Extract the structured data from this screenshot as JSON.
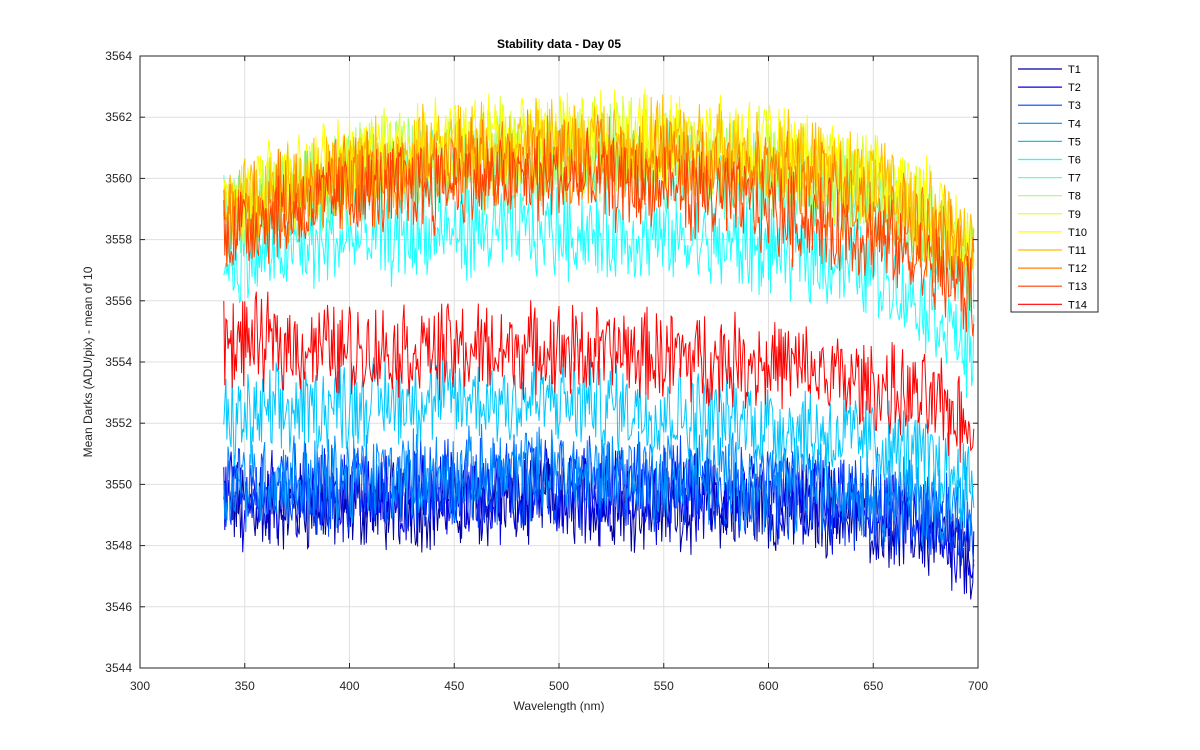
{
  "chart_data": {
    "type": "line",
    "title": "Stability data - Day 05",
    "xlabel": "Wavelength (nm)",
    "ylabel": "Mean Darks (ADU/pix) - mean of 10",
    "xlim": [
      300,
      700
    ],
    "ylim": [
      3544,
      3564
    ],
    "xticks": [
      300,
      350,
      400,
      450,
      500,
      550,
      600,
      650,
      700
    ],
    "yticks": [
      3544,
      3546,
      3548,
      3550,
      3552,
      3554,
      3556,
      3558,
      3560,
      3562,
      3564
    ],
    "x_range": [
      340,
      698
    ],
    "grid": true,
    "legend_position": "outside-top-right",
    "noise_amplitude": 1.6,
    "series": [
      {
        "name": "T1",
        "color": "#00009c",
        "x": [
          340,
          400,
          450,
          500,
          550,
          600,
          650,
          680,
          698
        ],
        "y": [
          3549.3,
          3549.3,
          3549.4,
          3549.5,
          3549.4,
          3549.3,
          3549.0,
          3548.3,
          3547.6
        ]
      },
      {
        "name": "T2",
        "color": "#0000e6",
        "x": [
          340,
          400,
          450,
          500,
          550,
          600,
          650,
          680,
          698
        ],
        "y": [
          3549.5,
          3549.6,
          3549.6,
          3549.7,
          3549.6,
          3549.4,
          3549.0,
          3548.4,
          3547.8
        ]
      },
      {
        "name": "T3",
        "color": "#0044ff",
        "x": [
          340,
          400,
          450,
          500,
          550,
          600,
          650,
          680,
          698
        ],
        "y": [
          3549.8,
          3549.9,
          3550.0,
          3550.1,
          3550.0,
          3549.8,
          3549.4,
          3548.9,
          3548.4
        ]
      },
      {
        "name": "T4",
        "color": "#008cff",
        "x": [
          340,
          400,
          450,
          500,
          550,
          600,
          650,
          680,
          698
        ],
        "y": [
          3550.1,
          3550.2,
          3550.3,
          3550.4,
          3550.3,
          3550.1,
          3549.8,
          3549.4,
          3549.1
        ]
      },
      {
        "name": "T5",
        "color": "#00c8ff",
        "x": [
          340,
          400,
          450,
          500,
          550,
          600,
          650,
          680,
          698
        ],
        "y": [
          3552.0,
          3552.7,
          3552.8,
          3552.7,
          3552.4,
          3552.0,
          3551.4,
          3550.7,
          3550.0
        ]
      },
      {
        "name": "T6",
        "color": "#1effff",
        "x": [
          340,
          400,
          450,
          500,
          550,
          600,
          650,
          680,
          698
        ],
        "y": [
          3557.2,
          3558.0,
          3558.2,
          3558.3,
          3558.0,
          3557.7,
          3557.0,
          3555.6,
          3554.2
        ]
      },
      {
        "name": "T7",
        "color": "#5fffd0",
        "x": [
          340,
          400,
          450,
          500,
          550,
          600,
          650,
          680,
          698
        ],
        "y": [
          3558.6,
          3559.9,
          3560.3,
          3560.5,
          3560.3,
          3560.0,
          3559.1,
          3557.9,
          3556.8
        ]
      },
      {
        "name": "T8",
        "color": "#9fff80",
        "x": [
          340,
          400,
          450,
          500,
          550,
          600,
          650,
          680,
          698
        ],
        "y": [
          3558.8,
          3560.2,
          3560.6,
          3560.8,
          3560.6,
          3560.3,
          3559.4,
          3558.3,
          3557.2
        ]
      },
      {
        "name": "T9",
        "color": "#d8ff30",
        "x": [
          340,
          400,
          450,
          500,
          550,
          600,
          650,
          680,
          698
        ],
        "y": [
          3559.0,
          3560.5,
          3561.0,
          3561.2,
          3561.0,
          3560.7,
          3559.9,
          3558.7,
          3557.6
        ]
      },
      {
        "name": "T10",
        "color": "#ffff00",
        "x": [
          340,
          400,
          450,
          500,
          550,
          600,
          650,
          680,
          698
        ],
        "y": [
          3559.1,
          3560.6,
          3561.2,
          3561.4,
          3561.2,
          3560.9,
          3560.1,
          3558.9,
          3557.9
        ]
      },
      {
        "name": "T11",
        "color": "#ffbf00",
        "x": [
          340,
          400,
          450,
          500,
          550,
          600,
          650,
          680,
          698
        ],
        "y": [
          3558.9,
          3560.4,
          3560.9,
          3561.1,
          3561.0,
          3560.7,
          3559.8,
          3558.6,
          3557.6
        ]
      },
      {
        "name": "T12",
        "color": "#ff8000",
        "x": [
          340,
          400,
          450,
          500,
          550,
          600,
          650,
          680,
          698
        ],
        "y": [
          3558.7,
          3560.0,
          3560.5,
          3560.7,
          3560.6,
          3560.2,
          3559.3,
          3558.1,
          3557.1
        ]
      },
      {
        "name": "T13",
        "color": "#ff4000",
        "x": [
          340,
          400,
          450,
          500,
          550,
          600,
          650,
          680,
          698
        ],
        "y": [
          3558.3,
          3559.5,
          3559.9,
          3560.0,
          3559.7,
          3559.0,
          3558.0,
          3557.0,
          3556.0
        ]
      },
      {
        "name": "T14",
        "color": "#ff0000",
        "x": [
          340,
          400,
          450,
          500,
          550,
          600,
          650,
          680,
          698
        ],
        "y": [
          3554.7,
          3554.4,
          3554.4,
          3554.4,
          3554.2,
          3554.0,
          3553.2,
          3552.6,
          3552.0
        ]
      }
    ]
  }
}
